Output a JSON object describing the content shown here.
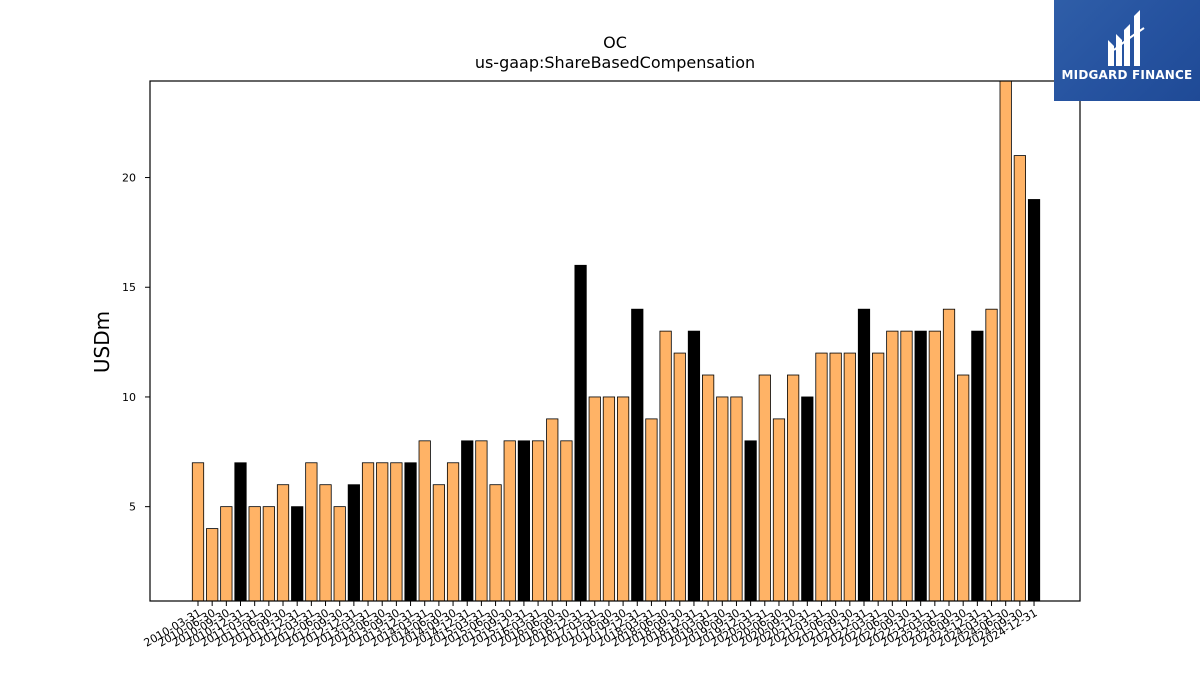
{
  "chart_data": {
    "type": "bar",
    "title": "OC",
    "subtitle": "us-gaap:ShareBasedCompensation",
    "xlabel": "",
    "ylabel": "USDm",
    "ylim": [
      0.7,
      24.4
    ],
    "yticks": [
      5,
      10,
      15,
      20
    ],
    "colors": {
      "normal": "#ffb366",
      "annual": "#000000",
      "edge": "#000000"
    },
    "categories": [
      "2010-03-31",
      "2010-06-30",
      "2010-09-30",
      "2010-12-31",
      "2011-03-31",
      "2011-06-30",
      "2011-09-30",
      "2011-12-31",
      "2012-03-31",
      "2012-06-30",
      "2012-09-30",
      "2012-12-31",
      "2013-03-31",
      "2013-06-30",
      "2013-09-30",
      "2013-12-31",
      "2014-03-31",
      "2014-06-30",
      "2014-09-30",
      "2014-12-31",
      "2015-03-31",
      "2015-06-30",
      "2015-09-30",
      "2015-12-31",
      "2016-03-31",
      "2016-06-30",
      "2016-09-30",
      "2016-12-31",
      "2017-03-31",
      "2017-06-30",
      "2017-09-30",
      "2017-12-31",
      "2018-03-31",
      "2018-06-30",
      "2018-09-30",
      "2018-12-31",
      "2019-03-31",
      "2019-06-30",
      "2019-09-30",
      "2019-12-31",
      "2020-03-31",
      "2020-06-30",
      "2020-09-30",
      "2020-12-31",
      "2021-03-31",
      "2021-06-30",
      "2021-09-30",
      "2021-12-31",
      "2022-03-31",
      "2022-06-30",
      "2022-09-30",
      "2022-12-31",
      "2023-03-31",
      "2023-06-30",
      "2023-09-30",
      "2023-12-31",
      "2024-03-31",
      "2024-06-30",
      "2024-09-30",
      "2024-12-31"
    ],
    "values": [
      7,
      4,
      5,
      7,
      5,
      5,
      6,
      5,
      7,
      6,
      5,
      6,
      7,
      7,
      7,
      7,
      8,
      6,
      7,
      8,
      8,
      6,
      8,
      8,
      8,
      9,
      8,
      16,
      10,
      10,
      10,
      14,
      9,
      13,
      12,
      13,
      11,
      10,
      10,
      8,
      11,
      9,
      11,
      10,
      12,
      12,
      12,
      14,
      12,
      13,
      13,
      13,
      13,
      14,
      11,
      13,
      14,
      25,
      21,
      19
    ],
    "annual": [
      false,
      false,
      false,
      true,
      false,
      false,
      false,
      true,
      false,
      false,
      false,
      true,
      false,
      false,
      false,
      true,
      false,
      false,
      false,
      true,
      false,
      false,
      false,
      true,
      false,
      false,
      false,
      true,
      false,
      false,
      false,
      true,
      false,
      false,
      false,
      true,
      false,
      false,
      false,
      true,
      false,
      false,
      false,
      true,
      false,
      false,
      false,
      true,
      false,
      false,
      false,
      true,
      false,
      false,
      false,
      true,
      false,
      false,
      false,
      true
    ]
  },
  "logo": {
    "text": "MIDGARD FINANCE",
    "icon": "midgard-logo-icon"
  }
}
